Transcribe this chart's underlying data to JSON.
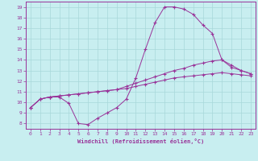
{
  "xlabel": "Windchill (Refroidissement éolien,°C)",
  "background_color": "#c8eef0",
  "grid_color": "#a8d8da",
  "line_color": "#993399",
  "xlim": [
    -0.5,
    23.5
  ],
  "ylim": [
    7.5,
    19.5
  ],
  "xticks": [
    0,
    1,
    2,
    3,
    4,
    5,
    6,
    7,
    8,
    9,
    10,
    11,
    12,
    13,
    14,
    15,
    16,
    17,
    18,
    19,
    20,
    21,
    22,
    23
  ],
  "yticks": [
    8,
    9,
    10,
    11,
    12,
    13,
    14,
    15,
    16,
    17,
    18,
    19
  ],
  "series1_x": [
    0,
    1,
    2,
    3,
    4,
    5,
    6,
    7,
    8,
    9,
    10,
    11,
    12,
    13,
    14,
    15,
    16,
    17,
    18,
    19,
    20,
    21,
    22,
    23
  ],
  "series1_y": [
    9.5,
    10.3,
    10.5,
    10.5,
    9.9,
    8.0,
    7.9,
    8.5,
    9.0,
    9.5,
    10.3,
    12.3,
    15.0,
    17.5,
    19.0,
    19.0,
    18.8,
    18.3,
    17.3,
    16.5,
    14.0,
    13.3,
    13.0,
    12.7
  ],
  "series2_x": [
    0,
    1,
    2,
    3,
    4,
    5,
    6,
    7,
    8,
    9,
    10,
    11,
    12,
    13,
    14,
    15,
    16,
    17,
    18,
    19,
    20,
    21,
    22,
    23
  ],
  "series2_y": [
    9.5,
    10.3,
    10.5,
    10.6,
    10.7,
    10.8,
    10.9,
    11.0,
    11.1,
    11.2,
    11.5,
    11.8,
    12.1,
    12.4,
    12.7,
    13.0,
    13.2,
    13.5,
    13.7,
    13.9,
    14.0,
    13.5,
    13.0,
    12.7
  ],
  "series3_x": [
    0,
    1,
    2,
    3,
    4,
    5,
    6,
    7,
    8,
    9,
    10,
    11,
    12,
    13,
    14,
    15,
    16,
    17,
    18,
    19,
    20,
    21,
    22,
    23
  ],
  "series3_y": [
    9.5,
    10.3,
    10.5,
    10.6,
    10.7,
    10.8,
    10.9,
    11.0,
    11.1,
    11.2,
    11.3,
    11.5,
    11.7,
    11.9,
    12.1,
    12.3,
    12.4,
    12.5,
    12.6,
    12.7,
    12.8,
    12.7,
    12.6,
    12.5
  ]
}
